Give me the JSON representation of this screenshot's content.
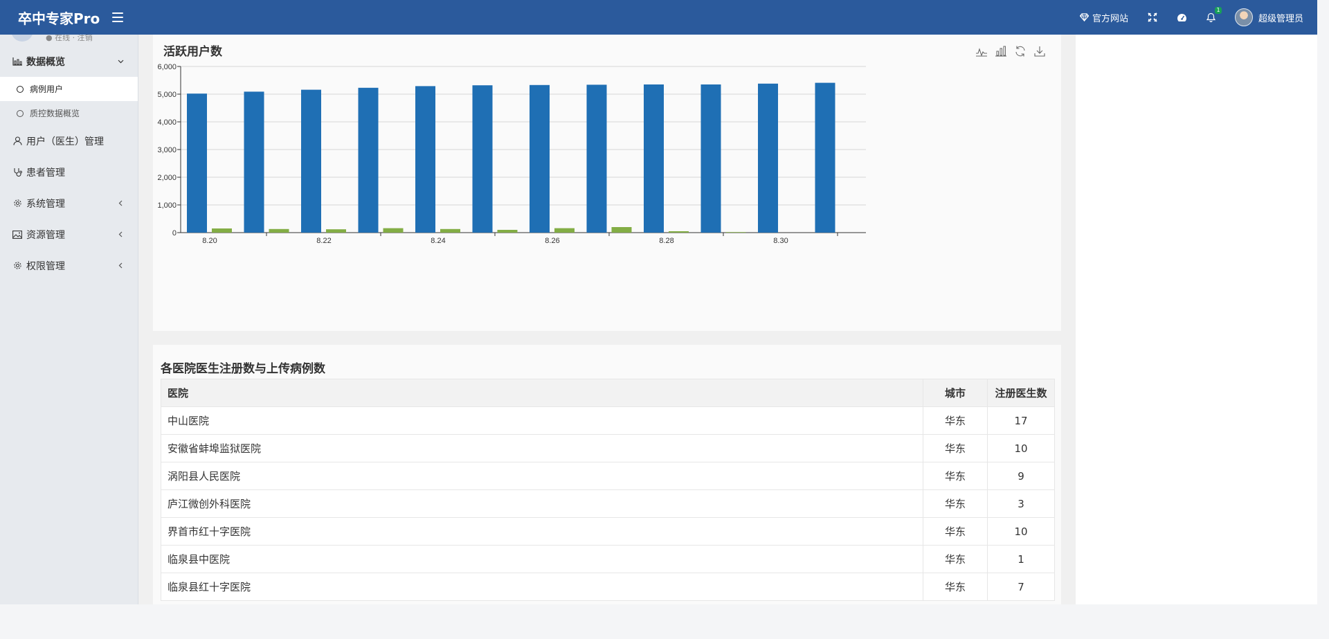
{
  "header": {
    "brand": "卒中专家Pro",
    "website_label": "官方网站",
    "notification_count": "1",
    "user_name": "超级管理员"
  },
  "sidebar": {
    "clipped_text": "● 在线 · 注销",
    "items": [
      {
        "label": "数据概览",
        "icon": "bar-chart-icon",
        "expanded": true,
        "children": [
          {
            "label": "病例用户",
            "active": true
          },
          {
            "label": "质控数据概览",
            "active": false
          }
        ]
      },
      {
        "label": "用户（医生）管理",
        "icon": "user-icon"
      },
      {
        "label": "患者管理",
        "icon": "stethoscope-icon"
      },
      {
        "label": "系统管理",
        "icon": "gear-icon"
      },
      {
        "label": "资源管理",
        "icon": "image-icon"
      },
      {
        "label": "权限管理",
        "icon": "gear-icon"
      }
    ]
  },
  "chart_panel": {
    "title": "活跃用户数",
    "toolbox": [
      "line-chart-icon",
      "bar-chart-icon",
      "refresh-icon",
      "download-icon"
    ]
  },
  "chart_data": {
    "type": "bar",
    "categories": [
      "8.20",
      "8.21",
      "8.22",
      "8.23",
      "8.24",
      "8.25",
      "8.26",
      "8.27",
      "8.28",
      "8.29",
      "8.30",
      "8.31"
    ],
    "x_tick_labels": [
      "8.20",
      "8.22",
      "8.24",
      "8.26",
      "8.28",
      "8.30"
    ],
    "series": [
      {
        "color": "#1f6fb4",
        "values": [
          5020,
          5090,
          5160,
          5230,
          5290,
          5320,
          5330,
          5340,
          5350,
          5350,
          5380,
          5410
        ]
      },
      {
        "color": "#83ad45",
        "values": [
          150,
          130,
          120,
          160,
          130,
          100,
          160,
          200,
          50,
          20,
          0,
          0
        ]
      }
    ],
    "y_ticks": [
      "0",
      "1,000",
      "2,000",
      "3,000",
      "4,000",
      "5,000",
      "6,000"
    ],
    "ylim": [
      0,
      6000
    ],
    "grid": true,
    "legend": "none"
  },
  "table_panel": {
    "title": "各医院医生注册数与上传病例数",
    "columns": [
      "医院",
      "城市",
      "注册医生数"
    ],
    "rows": [
      [
        "中山医院",
        "华东",
        "17"
      ],
      [
        "安徽省蚌埠监狱医院",
        "华东",
        "10"
      ],
      [
        "涡阳县人民医院",
        "华东",
        "9"
      ],
      [
        "庐江微创外科医院",
        "华东",
        "3"
      ],
      [
        "界首市红十字医院",
        "华东",
        "10"
      ],
      [
        "临泉县中医院",
        "华东",
        "1"
      ],
      [
        "临泉县红十字医院",
        "华东",
        "7"
      ]
    ]
  }
}
